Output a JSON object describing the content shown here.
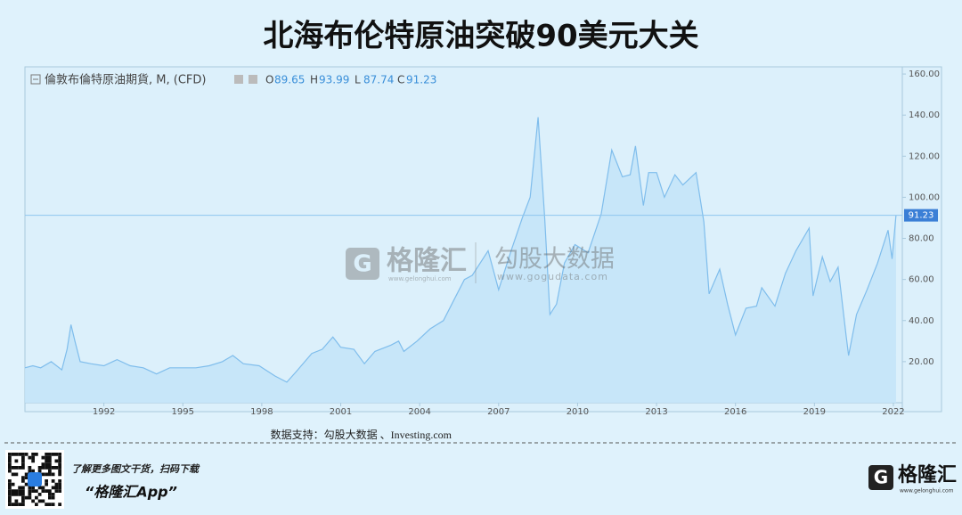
{
  "chart_data": {
    "type": "area",
    "title": "北海布伦特原油突破90美元大关",
    "series_label": "倫敦布倫特原油期貨, M, (CFD)",
    "ohlc": [
      {
        "label": "O",
        "value": 89.65
      },
      {
        "label": "H",
        "value": 93.99
      },
      {
        "label": "L",
        "value": 87.74
      },
      {
        "label": "C",
        "value": 91.23
      }
    ],
    "last_price": 91.23,
    "color": "#7fbdec",
    "fill": "#c4e4f8",
    "source": "数据支持：勾股大数据 、Investing.com",
    "x": [
      1989.0,
      1989.3,
      1989.6,
      1990.0,
      1990.4,
      1990.6,
      1990.75,
      1990.9,
      1991.1,
      1991.5,
      1992.0,
      1992.5,
      1993.0,
      1993.5,
      1994.0,
      1994.5,
      1995.0,
      1995.5,
      1996.0,
      1996.5,
      1996.9,
      1997.3,
      1997.9,
      1998.5,
      1998.95,
      1999.3,
      1999.9,
      2000.3,
      2000.7,
      2001.0,
      2001.5,
      2001.9,
      2002.3,
      2002.9,
      2003.2,
      2003.4,
      2003.9,
      2004.4,
      2004.9,
      2005.3,
      2005.7,
      2006.0,
      2006.6,
      2007.0,
      2007.5,
      2007.9,
      2008.2,
      2008.5,
      2008.75,
      2008.95,
      2009.2,
      2009.5,
      2009.9,
      2010.4,
      2010.9,
      2011.3,
      2011.7,
      2012.0,
      2012.2,
      2012.5,
      2012.7,
      2013.0,
      2013.3,
      2013.7,
      2014.0,
      2014.5,
      2014.8,
      2015.0,
      2015.4,
      2015.7,
      2016.0,
      2016.4,
      2016.8,
      2017.0,
      2017.5,
      2017.9,
      2018.3,
      2018.8,
      2018.95,
      2019.3,
      2019.6,
      2019.9,
      2020.2,
      2020.3,
      2020.6,
      2021.0,
      2021.4,
      2021.8,
      2021.95,
      2022.1
    ],
    "values": [
      17,
      18,
      17,
      20,
      16,
      26,
      38,
      30,
      20,
      19,
      18,
      21,
      18,
      17,
      14,
      17,
      17,
      17,
      18,
      20,
      23,
      19,
      18,
      13,
      10,
      15,
      24,
      26,
      32,
      27,
      26,
      19,
      25,
      28,
      30,
      25,
      30,
      36,
      40,
      50,
      60,
      62,
      74,
      55,
      75,
      90,
      100,
      139,
      90,
      43,
      48,
      68,
      77,
      73,
      92,
      123,
      110,
      111,
      125,
      96,
      112,
      112,
      100,
      111,
      106,
      112,
      88,
      53,
      65,
      48,
      33,
      46,
      47,
      56,
      47,
      63,
      74,
      85,
      52,
      71,
      59,
      66,
      33,
      23,
      43,
      55,
      68,
      84,
      70,
      91.23
    ],
    "xlim": [
      1989.0,
      2022.34
    ],
    "xticks": [
      1992,
      1995,
      1998,
      2001,
      2004,
      2007,
      2010,
      2013,
      2016,
      2019,
      2022
    ],
    "ylim": [
      0,
      163.5
    ],
    "yticks": [
      {
        "value": 20,
        "label": "20.00"
      },
      {
        "value": 40,
        "label": "40.00"
      },
      {
        "value": 60,
        "label": "60.00"
      },
      {
        "value": 80,
        "label": "80.00"
      },
      {
        "value": 100,
        "label": "100.00"
      },
      {
        "value": 120,
        "label": "120.00"
      },
      {
        "value": 140,
        "label": "140.00"
      },
      {
        "value": 160,
        "label": "160.00"
      }
    ]
  },
  "watermarks": {
    "brand": "格隆汇",
    "brand_url": "www.gelonghui.com",
    "data_brand": "勾股大数据",
    "data_url": "www.gogudata.com"
  },
  "footer": {
    "prompt": "了解更多图文干货，扫码下载",
    "app": "“格隆汇App”",
    "logo": "格隆汇",
    "logo_url": "www.gelonghui.com"
  }
}
